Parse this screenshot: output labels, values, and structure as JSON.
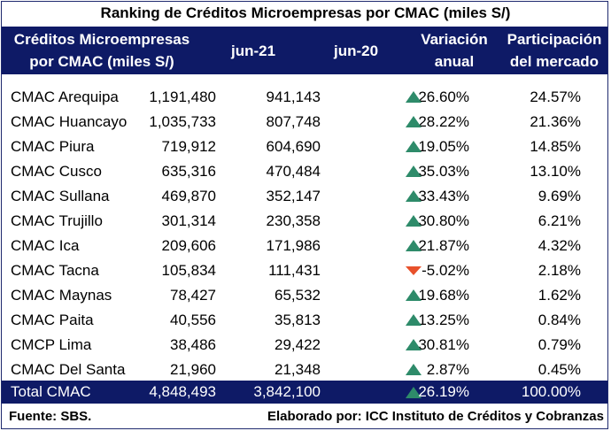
{
  "title": "Ranking de Créditos Microempresas por CMAC (miles S/)",
  "header": {
    "col1_line1": "Créditos Microempresas",
    "col1_line2": "por CMAC (miles S/)",
    "col2": "jun-21",
    "col3": "jun-20",
    "col4_line1": "Variación",
    "col4_line2": "anual",
    "col5_line1": "Participación",
    "col5_line2": "del mercado"
  },
  "colors": {
    "header_bg": "#0e1a66",
    "up": "#2e8b6a",
    "down": "#e8512b"
  },
  "chart_data": {
    "type": "table",
    "columns": [
      "Créditos Microempresas por CMAC (miles S/)",
      "jun-21",
      "jun-20",
      "Variación anual",
      "Participación del mercado"
    ],
    "rows": [
      {
        "name": "CMAC Arequipa",
        "jun21": "1,191,480",
        "jun20": "941,143",
        "trend": "up",
        "var": "26.60%",
        "part": "24.57%"
      },
      {
        "name": "CMAC Huancayo",
        "jun21": "1,035,733",
        "jun20": "807,748",
        "trend": "up",
        "var": "28.22%",
        "part": "21.36%"
      },
      {
        "name": "CMAC Piura",
        "jun21": "719,912",
        "jun20": "604,690",
        "trend": "up",
        "var": "19.05%",
        "part": "14.85%"
      },
      {
        "name": "CMAC Cusco",
        "jun21": "635,316",
        "jun20": "470,484",
        "trend": "up",
        "var": "35.03%",
        "part": "13.10%"
      },
      {
        "name": "CMAC Sullana",
        "jun21": "469,870",
        "jun20": "352,147",
        "trend": "up",
        "var": "33.43%",
        "part": "9.69%"
      },
      {
        "name": "CMAC Trujillo",
        "jun21": "301,314",
        "jun20": "230,358",
        "trend": "up",
        "var": "30.80%",
        "part": "6.21%"
      },
      {
        "name": "CMAC Ica",
        "jun21": "209,606",
        "jun20": "171,986",
        "trend": "up",
        "var": "21.87%",
        "part": "4.32%"
      },
      {
        "name": "CMAC Tacna",
        "jun21": "105,834",
        "jun20": "111,431",
        "trend": "down",
        "var": "-5.02%",
        "part": "2.18%"
      },
      {
        "name": "CMAC Maynas",
        "jun21": "78,427",
        "jun20": "65,532",
        "trend": "up",
        "var": "19.68%",
        "part": "1.62%"
      },
      {
        "name": "CMAC Paita",
        "jun21": "40,556",
        "jun20": "35,813",
        "trend": "up",
        "var": "13.25%",
        "part": "0.84%"
      },
      {
        "name": "CMCP Lima",
        "jun21": "38,486",
        "jun20": "29,422",
        "trend": "up",
        "var": "30.81%",
        "part": "0.79%"
      },
      {
        "name": "CMAC Del Santa",
        "jun21": "21,960",
        "jun20": "21,348",
        "trend": "up",
        "var": "2.87%",
        "part": "0.45%"
      }
    ],
    "total": {
      "name": "Total CMAC",
      "jun21": "4,848,493",
      "jun20": "3,842,100",
      "trend": "up",
      "var": "26.19%",
      "part": "100.00%"
    }
  },
  "footer": {
    "source": "Fuente: SBS.",
    "credit": "Elaborado por: ICC Instituto de Créditos y Cobranzas"
  }
}
